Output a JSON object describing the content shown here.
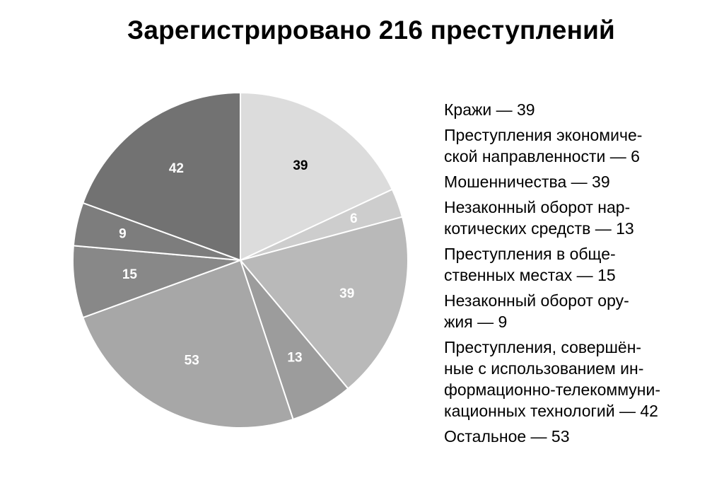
{
  "chart_data": {
    "type": "pie",
    "title": "Зарегистрировано 216 преступлений",
    "start_angle_deg": 0,
    "direction": "clockwise",
    "slices": [
      {
        "value": 39,
        "label": "39",
        "color": "#dcdcdc",
        "label_color": "#000000",
        "legend_lines": [
          "Кражи — 39"
        ]
      },
      {
        "value": 6,
        "label": "6",
        "color": "#cdcdcd",
        "label_color": "#ffffff",
        "legend_lines": [
          "Преступления экономиче-",
          "ской направленности — 6"
        ]
      },
      {
        "value": 39,
        "label": "39",
        "color": "#b9b9b9",
        "label_color": "#ffffff",
        "legend_lines": [
          "Мошенничества — 39"
        ]
      },
      {
        "value": 13,
        "label": "13",
        "color": "#9c9c9c",
        "label_color": "#ffffff",
        "legend_lines": [
          "Незаконный оборот нар-",
          "котических средств — 13"
        ]
      },
      {
        "value": 53,
        "label": "53",
        "color": "#a7a7a7",
        "label_color": "#ffffff",
        "legend_lines": [
          "Остальное — 53"
        ]
      },
      {
        "value": 15,
        "label": "15",
        "color": "#888888",
        "label_color": "#ffffff",
        "legend_lines": [
          "Преступления в обще-",
          "ственных местах — 15"
        ]
      },
      {
        "value": 9,
        "label": "9",
        "color": "#7d7d7d",
        "label_color": "#ffffff",
        "legend_lines": [
          "Незаконный оборот ору-",
          "жия — 9"
        ]
      },
      {
        "value": 42,
        "label": "42",
        "color": "#727272",
        "label_color": "#ffffff",
        "legend_lines": [
          "Преступления, совершён-",
          "ные с использованием ин-",
          "формационно-телекоммуни-",
          "кационных технологий — 42"
        ]
      }
    ],
    "legend_order": [
      0,
      1,
      2,
      3,
      5,
      6,
      7,
      4
    ],
    "legend_placement": "right"
  }
}
